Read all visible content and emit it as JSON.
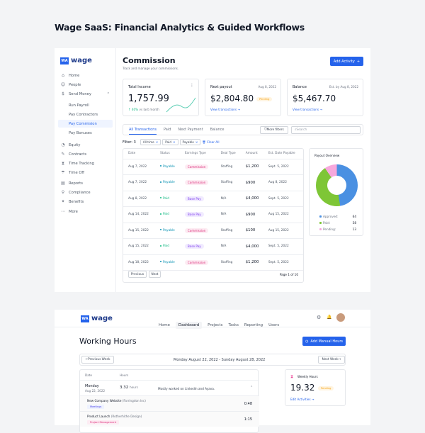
{
  "page_title": "Wage SaaS: Financial Analytics & Guided Workflows",
  "brand": {
    "mark": "WA",
    "name": "wage",
    "accent": "#2563eb"
  },
  "sidebar": {
    "items": [
      {
        "label": "Home",
        "icon": "home-icon",
        "glyph": "⌂"
      },
      {
        "label": "People",
        "icon": "people-icon",
        "glyph": "☺"
      },
      {
        "label": "Send Money",
        "icon": "money-icon",
        "glyph": "$",
        "expanded": true
      },
      {
        "label": "Run Payroll",
        "sub": true
      },
      {
        "label": "Pay Contractors",
        "sub": true
      },
      {
        "label": "Pay Commision",
        "sub": true,
        "active": true
      },
      {
        "label": "Pay Bonuses",
        "sub": true
      },
      {
        "label": "Equity",
        "icon": "pie-icon",
        "glyph": "◔"
      },
      {
        "label": "Contracts",
        "icon": "pen-icon",
        "glyph": "✎"
      },
      {
        "label": "Time Tracking",
        "icon": "hourglass-icon",
        "glyph": "⧗"
      },
      {
        "label": "Time Off",
        "icon": "umbrella-icon",
        "glyph": "☂"
      },
      {
        "label": "Reports",
        "icon": "report-icon",
        "glyph": "▤"
      },
      {
        "label": "Compliance",
        "icon": "link-icon",
        "glyph": "⚲"
      },
      {
        "label": "Benefits",
        "icon": "sparkle-icon",
        "glyph": "✦"
      },
      {
        "label": "More",
        "icon": "more-icon",
        "glyph": "⋯"
      }
    ]
  },
  "commission": {
    "title": "Commission",
    "subtitle": "Track and manage your commissions.",
    "add_button": "Add Activity",
    "total_income": {
      "label": "Total Income",
      "value": "1,757.99",
      "change": "40%",
      "change_text": "vs last month"
    },
    "next_payout": {
      "label": "Next payout",
      "date": "Aug 8, 2022",
      "value": "$2,804.80",
      "badge": "Pending",
      "link": "View transactions"
    },
    "balance": {
      "label": "Balance",
      "date": "Est. by Aug 8, 2022",
      "value": "$5,467.70",
      "link": "View transactions"
    },
    "tabs": [
      "All Transactions",
      "Paid",
      "Next Payment",
      "Balance"
    ],
    "more_filters": "More filters",
    "search_placeholder": "Search",
    "filter_label": "Filter: 3",
    "filters": [
      "All time",
      "Paid",
      "Payable"
    ],
    "clear_all": "Clear All",
    "columns": [
      "Date",
      "Status",
      "Earnings Type",
      "Deal Type",
      "Amount",
      "Est. Date Payable"
    ],
    "rows": [
      [
        "Aug 7, 2022",
        "Payable",
        "Commission",
        "Staffing",
        "$1,200",
        "Sept. 5, 2022"
      ],
      [
        "Aug 7, 2022",
        "Payable",
        "Commission",
        "Staffing",
        "$900",
        "Aug 8, 2022"
      ],
      [
        "Aug 8, 2022",
        "Paid",
        "Base Pay",
        "N/A",
        "$4,000",
        "Sept. 5, 2022"
      ],
      [
        "Aug 14, 2022",
        "Paid",
        "Base Pay",
        "N/A",
        "$900",
        "Aug 15, 2022"
      ],
      [
        "Aug 15, 2022",
        "Payable",
        "Commission",
        "Staffing",
        "$100",
        "Aug 15, 2022"
      ],
      [
        "Aug 15, 2022",
        "Paid",
        "Base Pay",
        "N/A",
        "$4,000",
        "Sept. 5, 2022"
      ],
      [
        "Aug 18, 2022",
        "Payable",
        "Commission",
        "Staffing",
        "$1,200",
        "Sept. 5, 2022"
      ]
    ],
    "prev": "Previous",
    "next": "Next",
    "page_info": "Page 1 of 10",
    "payout": {
      "title": "Payout Overview",
      "items": [
        {
          "label": "Approved:",
          "value": 64,
          "color": "#4a90e2"
        },
        {
          "label": "Paid:",
          "value": 58,
          "color": "#7ec636"
        },
        {
          "label": "Pending:",
          "value": 13,
          "color": "#f7a8dc"
        }
      ]
    }
  },
  "hours": {
    "nav": [
      "Home",
      "Dashboard",
      "Projects",
      "Tasks",
      "Reporting",
      "Users"
    ],
    "active_nav": "Dashboard",
    "title": "Working Hours",
    "add_button": "Add Manual Hours",
    "prev_week": "Previous Week",
    "next_week": "Next Week",
    "range": "Monday August 22, 2022 - Sunday August 28, 2022",
    "columns": [
      "Date",
      "Hours"
    ],
    "day": {
      "name": "Monday",
      "date": "Aug 22, 2022",
      "hours": "3.32",
      "unit": "hours",
      "note": "Mostly worked on LinkedIn and Ayava."
    },
    "entries": [
      {
        "project": "New Company Website",
        "client": "(Farringdon Inc)",
        "tag": "Meetings",
        "time": "0:48"
      },
      {
        "project": "Product Launch",
        "client": "(Rotherhithe Design)",
        "tag": "Project Management",
        "time": "1:15"
      }
    ],
    "weekly": {
      "label": "Weekly Hours",
      "value": "19.32",
      "badge": "Pending",
      "link": "Edit Activities"
    }
  }
}
